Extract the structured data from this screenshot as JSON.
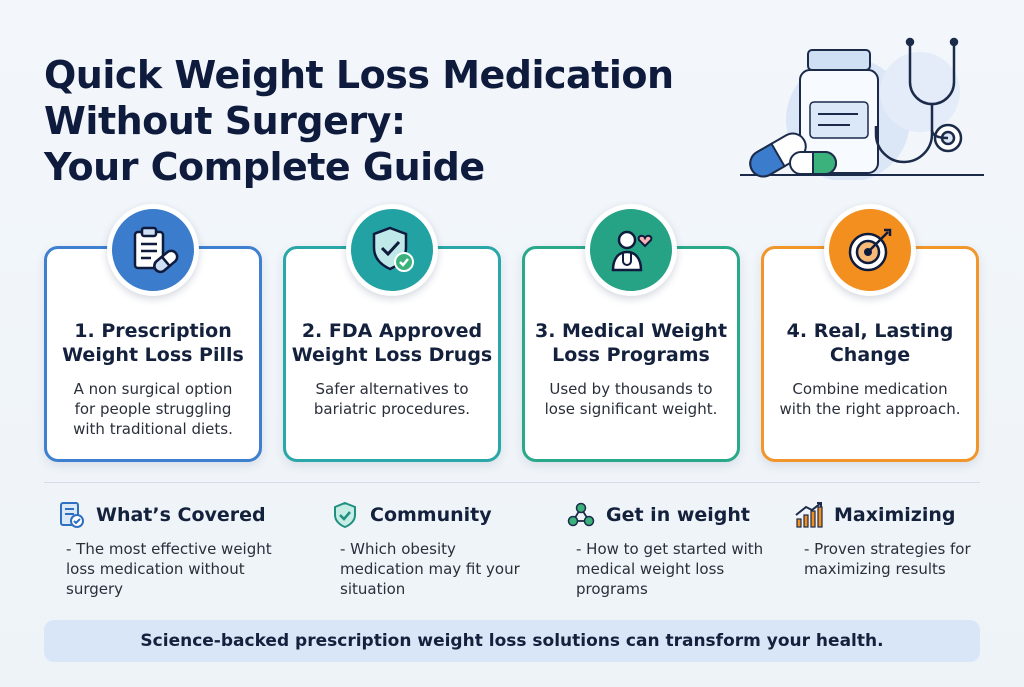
{
  "title": {
    "line1": "Quick Weight Loss Medication",
    "line2": "Without Surgery:",
    "line3": "Your Complete Guide"
  },
  "colors": {
    "navy": "#0f1b3d",
    "blue": "#3b7ccc",
    "teal": "#23a2a4",
    "green": "#26a385",
    "orange": "#f28f1f",
    "banner": "#d9e6f7"
  },
  "hero_icons": [
    "medicine-bottle-icon",
    "pill-capsule-icon",
    "stethoscope-icon"
  ],
  "cards": [
    {
      "icon": "clipboard-pill-icon",
      "title": [
        "1. Prescription",
        "Weight Loss Pills"
      ],
      "text": [
        "A non surgical option",
        "for people struggling",
        "with traditional diets."
      ]
    },
    {
      "icon": "shield-check-icon",
      "title": [
        "2. FDA Approved",
        "Weight Loss Drugs"
      ],
      "text": [
        "Safer alternatives to",
        "bariatric procedures."
      ]
    },
    {
      "icon": "doctor-heart-icon",
      "title": [
        "3. Medical Weight",
        "Loss Programs"
      ],
      "text": [
        "Used by thousands to",
        "lose significant weight."
      ]
    },
    {
      "icon": "target-arrow-icon",
      "title": [
        "4. Real, Lasting",
        "Change"
      ],
      "text": [
        "Combine medication",
        "with the right approach."
      ]
    }
  ],
  "features": [
    {
      "icon": "document-check-icon",
      "title": "What’s Covered",
      "text": [
        "- The most effective weight",
        "loss medication without",
        "surgery"
      ]
    },
    {
      "icon": "shield-check-icon",
      "title": "Community",
      "text": [
        "- Which obesity",
        "medication may fit your",
        "situation"
      ]
    },
    {
      "icon": "network-nodes-icon",
      "title": "Get in weight",
      "text": [
        "- How to get started with",
        "medical weight loss",
        "programs"
      ]
    },
    {
      "icon": "bar-chart-up-icon",
      "title": "Maximizing",
      "text": [
        "- Proven strategies for",
        "maximizing results"
      ]
    }
  ],
  "banner": "Science-backed prescription weight loss solutions can transform your health."
}
